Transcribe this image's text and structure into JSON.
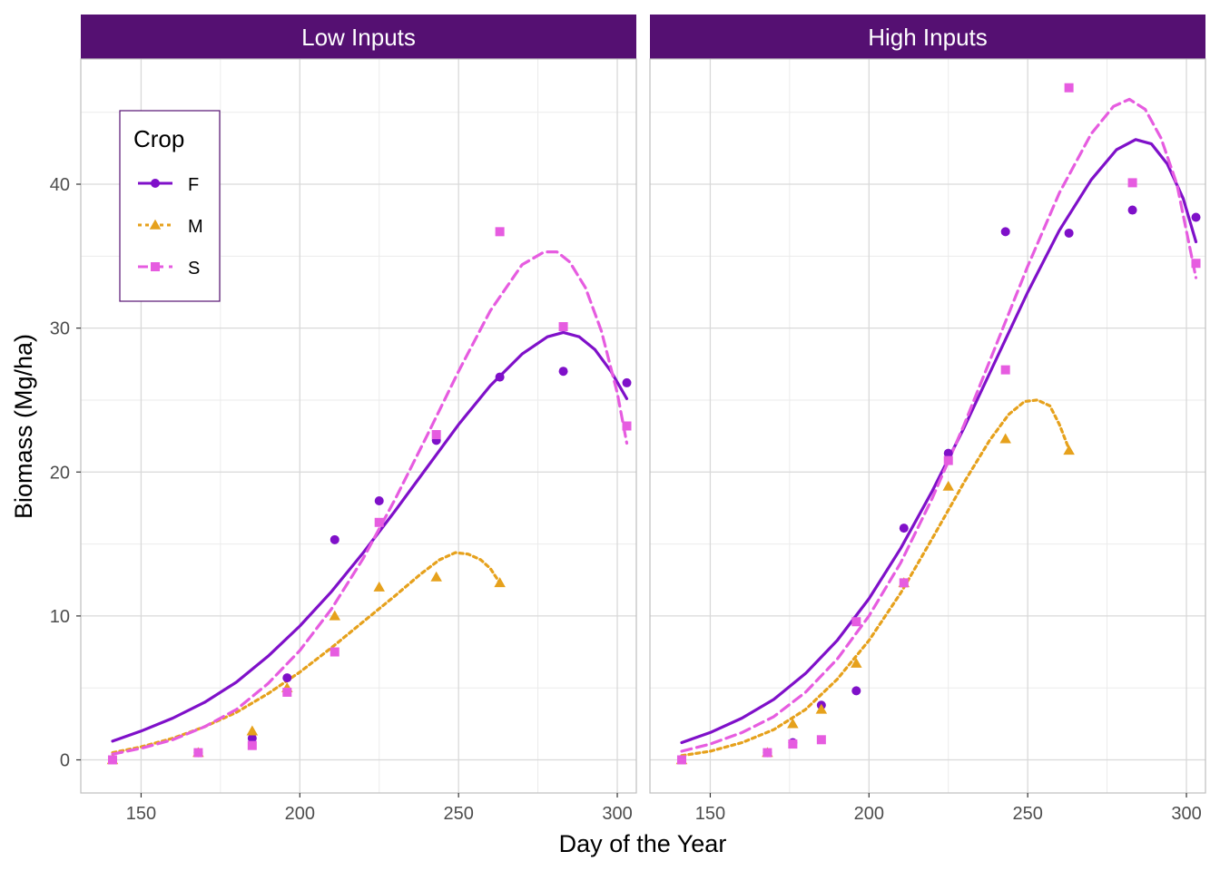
{
  "chart_data": {
    "type": "scatter",
    "xlabel": "Day of the Year",
    "ylabel": "Biomass (Mg/ha)",
    "xlim": [
      131,
      306
    ],
    "ylim": [
      -2.3,
      48.7
    ],
    "x_ticks": [
      150,
      200,
      250,
      300
    ],
    "y_ticks": [
      0,
      10,
      20,
      30,
      40
    ],
    "grid": true,
    "legend": {
      "title": "Crop",
      "placement": "top-left",
      "entries": [
        "F",
        "M",
        "S"
      ]
    },
    "colors": {
      "F": "#7f10c9",
      "M": "#e6a11c",
      "S": "#e65ce0",
      "strip": "#551072",
      "grid_major": "#d9d9d9",
      "grid_minor": "#ebebeb"
    },
    "panels": [
      {
        "title": "Low Inputs",
        "series": [
          {
            "name": "F",
            "marker": "circle",
            "line": "solid",
            "points": [
              [
                141,
                0
              ],
              [
                168,
                0.5
              ],
              [
                185,
                1.5
              ],
              [
                196,
                5.7
              ],
              [
                211,
                15.3
              ],
              [
                225,
                18.0
              ],
              [
                243,
                22.2
              ],
              [
                263,
                26.6
              ],
              [
                283,
                27.0
              ],
              [
                303,
                26.2
              ]
            ],
            "curve": [
              [
                141,
                1.3
              ],
              [
                150,
                2.0
              ],
              [
                160,
                2.9
              ],
              [
                170,
                4.0
              ],
              [
                180,
                5.4
              ],
              [
                190,
                7.2
              ],
              [
                200,
                9.3
              ],
              [
                210,
                11.7
              ],
              [
                220,
                14.4
              ],
              [
                230,
                17.3
              ],
              [
                240,
                20.3
              ],
              [
                250,
                23.3
              ],
              [
                260,
                26.0
              ],
              [
                270,
                28.2
              ],
              [
                278,
                29.4
              ],
              [
                283,
                29.7
              ],
              [
                288,
                29.4
              ],
              [
                293,
                28.5
              ],
              [
                298,
                27.0
              ],
              [
                303,
                25.1
              ]
            ]
          },
          {
            "name": "M",
            "marker": "triangle",
            "line": "dotted",
            "points": [
              [
                141,
                0
              ],
              [
                168,
                0.5
              ],
              [
                185,
                2.0
              ],
              [
                196,
                5.0
              ],
              [
                211,
                10.0
              ],
              [
                225,
                12.0
              ],
              [
                243,
                12.7
              ],
              [
                263,
                12.3
              ]
            ],
            "curve": [
              [
                141,
                0.5
              ],
              [
                150,
                0.9
              ],
              [
                160,
                1.5
              ],
              [
                170,
                2.3
              ],
              [
                180,
                3.3
              ],
              [
                190,
                4.6
              ],
              [
                200,
                6.1
              ],
              [
                210,
                7.8
              ],
              [
                220,
                9.6
              ],
              [
                230,
                11.4
              ],
              [
                238,
                12.9
              ],
              [
                244,
                13.9
              ],
              [
                249,
                14.4
              ],
              [
                253,
                14.3
              ],
              [
                257,
                13.9
              ],
              [
                260,
                13.3
              ],
              [
                263,
                12.3
              ]
            ]
          },
          {
            "name": "S",
            "marker": "square",
            "line": "dashed",
            "points": [
              [
                141,
                0
              ],
              [
                168,
                0.5
              ],
              [
                185,
                1.0
              ],
              [
                196,
                4.7
              ],
              [
                211,
                7.5
              ],
              [
                225,
                16.5
              ],
              [
                243,
                22.6
              ],
              [
                263,
                36.7
              ],
              [
                283,
                30.1
              ],
              [
                303,
                23.2
              ]
            ],
            "curve": [
              [
                141,
                0.4
              ],
              [
                150,
                0.8
              ],
              [
                160,
                1.4
              ],
              [
                170,
                2.3
              ],
              [
                180,
                3.5
              ],
              [
                190,
                5.3
              ],
              [
                200,
                7.6
              ],
              [
                210,
                10.5
              ],
              [
                220,
                14.0
              ],
              [
                230,
                18.1
              ],
              [
                240,
                22.5
              ],
              [
                250,
                27.0
              ],
              [
                260,
                31.2
              ],
              [
                270,
                34.4
              ],
              [
                277,
                35.3
              ],
              [
                281,
                35.3
              ],
              [
                285,
                34.6
              ],
              [
                290,
                32.8
              ],
              [
                295,
                29.8
              ],
              [
                300,
                25.5
              ],
              [
                303,
                22.0
              ]
            ]
          }
        ]
      },
      {
        "title": "High Inputs",
        "series": [
          {
            "name": "F",
            "marker": "circle",
            "line": "solid",
            "points": [
              [
                141,
                0
              ],
              [
                168,
                0.5
              ],
              [
                176,
                1.2
              ],
              [
                185,
                3.8
              ],
              [
                196,
                4.8
              ],
              [
                211,
                16.1
              ],
              [
                225,
                21.3
              ],
              [
                243,
                36.7
              ],
              [
                263,
                36.6
              ],
              [
                283,
                38.2
              ],
              [
                303,
                37.7
              ]
            ],
            "curve": [
              [
                141,
                1.2
              ],
              [
                150,
                1.9
              ],
              [
                160,
                2.9
              ],
              [
                170,
                4.2
              ],
              [
                180,
                6.0
              ],
              [
                190,
                8.3
              ],
              [
                200,
                11.2
              ],
              [
                210,
                14.7
              ],
              [
                220,
                18.7
              ],
              [
                230,
                23.1
              ],
              [
                240,
                27.8
              ],
              [
                250,
                32.5
              ],
              [
                260,
                36.8
              ],
              [
                270,
                40.3
              ],
              [
                278,
                42.4
              ],
              [
                284,
                43.1
              ],
              [
                289,
                42.8
              ],
              [
                294,
                41.4
              ],
              [
                299,
                39.0
              ],
              [
                303,
                36.0
              ]
            ]
          },
          {
            "name": "M",
            "marker": "triangle",
            "line": "dotted",
            "points": [
              [
                141,
                0
              ],
              [
                168,
                0.5
              ],
              [
                176,
                2.5
              ],
              [
                185,
                3.5
              ],
              [
                196,
                6.7
              ],
              [
                211,
                12.3
              ],
              [
                225,
                19.0
              ],
              [
                243,
                22.3
              ],
              [
                263,
                21.5
              ]
            ],
            "curve": [
              [
                141,
                0.3
              ],
              [
                150,
                0.6
              ],
              [
                160,
                1.2
              ],
              [
                170,
                2.1
              ],
              [
                180,
                3.5
              ],
              [
                190,
                5.6
              ],
              [
                200,
                8.3
              ],
              [
                210,
                11.6
              ],
              [
                220,
                15.4
              ],
              [
                230,
                19.3
              ],
              [
                238,
                22.2
              ],
              [
                244,
                24.0
              ],
              [
                249,
                24.9
              ],
              [
                253,
                25.0
              ],
              [
                257,
                24.6
              ],
              [
                260,
                23.3
              ],
              [
                263,
                21.6
              ]
            ]
          },
          {
            "name": "S",
            "marker": "square",
            "line": "dashed",
            "points": [
              [
                141,
                0
              ],
              [
                168,
                0.5
              ],
              [
                176,
                1.1
              ],
              [
                185,
                1.4
              ],
              [
                196,
                9.6
              ],
              [
                211,
                12.3
              ],
              [
                225,
                20.8
              ],
              [
                243,
                27.1
              ],
              [
                263,
                46.7
              ],
              [
                283,
                40.1
              ],
              [
                303,
                34.5
              ]
            ],
            "curve": [
              [
                141,
                0.6
              ],
              [
                150,
                1.1
              ],
              [
                160,
                1.9
              ],
              [
                170,
                3.0
              ],
              [
                180,
                4.7
              ],
              [
                190,
                7.0
              ],
              [
                200,
                10.0
              ],
              [
                210,
                13.7
              ],
              [
                220,
                18.2
              ],
              [
                230,
                23.3
              ],
              [
                240,
                28.8
              ],
              [
                250,
                34.3
              ],
              [
                260,
                39.4
              ],
              [
                270,
                43.5
              ],
              [
                277,
                45.4
              ],
              [
                282,
                45.9
              ],
              [
                287,
                45.2
              ],
              [
                292,
                43.2
              ],
              [
                297,
                40.0
              ],
              [
                303,
                33.5
              ]
            ]
          }
        ]
      }
    ]
  }
}
